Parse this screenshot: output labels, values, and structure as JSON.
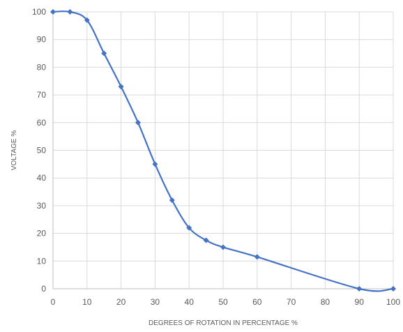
{
  "chart_data": {
    "type": "line",
    "title": "",
    "xlabel": "DEGREES OF ROTATION IN PERCENTAGE %",
    "ylabel": "VOLTAGE %",
    "xlim": [
      0,
      100
    ],
    "ylim": [
      0,
      100
    ],
    "x_ticks": [
      "0",
      "10",
      "20",
      "30",
      "40",
      "50",
      "60",
      "70",
      "80",
      "90",
      "100"
    ],
    "y_ticks": [
      "0",
      "10",
      "20",
      "30",
      "40",
      "50",
      "60",
      "70",
      "80",
      "90",
      "100"
    ],
    "grid": true,
    "legend": "none",
    "smooth": true,
    "marker": "diamond",
    "series": [
      {
        "color": "#4472c4",
        "x": [
          0,
          5,
          10,
          15,
          20,
          25,
          30,
          35,
          40,
          45,
          50,
          60,
          90,
          100
        ],
        "y": [
          100,
          100,
          97,
          85,
          73,
          60,
          45,
          32,
          22,
          17.5,
          15,
          11.5,
          0,
          0
        ]
      }
    ]
  }
}
